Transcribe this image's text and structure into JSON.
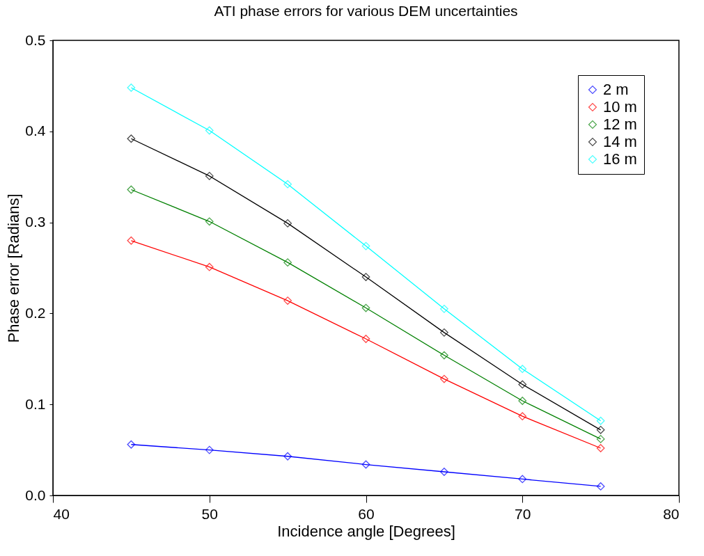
{
  "chart_data": {
    "type": "line",
    "title": "ATI phase errors for various DEM uncertainties",
    "xlabel": "Incidence angle [Degrees]",
    "ylabel": "Phase error [Radians]",
    "x": [
      45,
      50,
      55,
      60,
      65,
      70,
      75
    ],
    "series": [
      {
        "name": "2 m",
        "color": "#0000ff",
        "values": [
          0.056,
          0.05,
          0.043,
          0.034,
          0.026,
          0.018,
          0.01
        ]
      },
      {
        "name": "10 m",
        "color": "#ff0000",
        "values": [
          0.28,
          0.251,
          0.214,
          0.172,
          0.128,
          0.087,
          0.052
        ]
      },
      {
        "name": "12 m",
        "color": "#008000",
        "values": [
          0.336,
          0.301,
          0.256,
          0.206,
          0.154,
          0.104,
          0.062
        ]
      },
      {
        "name": "14 m",
        "color": "#000000",
        "values": [
          0.392,
          0.351,
          0.299,
          0.24,
          0.179,
          0.122,
          0.072
        ]
      },
      {
        "name": "16 m",
        "color": "#00ffff",
        "values": [
          0.448,
          0.401,
          0.342,
          0.274,
          0.205,
          0.139,
          0.082
        ]
      }
    ],
    "xlim": [
      40,
      80
    ],
    "xticks": [
      40,
      50,
      60,
      70,
      80
    ],
    "ylim": [
      0,
      0.5
    ],
    "yticks": [
      {
        "value": 0,
        "label": "0.0"
      },
      0.1,
      0.2,
      0.3,
      0.4,
      0.5
    ],
    "legend": "top right",
    "marker": "diamond",
    "line_style": "solid",
    "grid": false
  }
}
